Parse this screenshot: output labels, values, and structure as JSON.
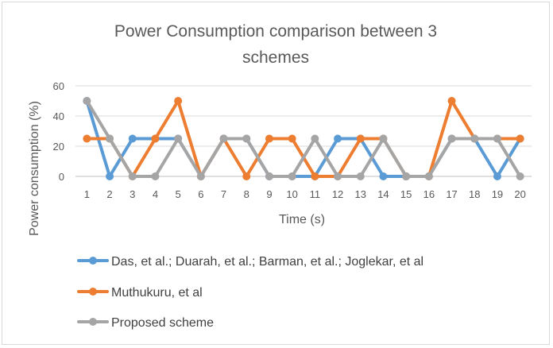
{
  "chart_data": {
    "type": "line",
    "title_line1": "Power Consumption comparison between 3",
    "title_line2": "schemes",
    "xlabel": "Time (s)",
    "ylabel": "Power consumption (%)",
    "ylim": [
      0,
      60
    ],
    "yticks": [
      0,
      20,
      40,
      60
    ],
    "grid": true,
    "legend_position": "bottom",
    "x": [
      1,
      2,
      3,
      4,
      5,
      6,
      7,
      8,
      9,
      10,
      11,
      12,
      13,
      14,
      15,
      16,
      17,
      18,
      19,
      20
    ],
    "series": [
      {
        "name": "Das, et al.; Duarah, et al.; Barman, et al.; Joglekar, et al",
        "color": "#5b9bd5",
        "values": [
          50,
          0,
          25,
          25,
          25,
          0,
          25,
          25,
          0,
          0,
          0,
          25,
          25,
          0,
          0,
          0,
          25,
          25,
          0,
          25
        ]
      },
      {
        "name": "Muthukuru, et al",
        "color": "#ed7d31",
        "values": [
          25,
          25,
          0,
          25,
          50,
          0,
          25,
          0,
          25,
          25,
          0,
          0,
          25,
          25,
          0,
          0,
          50,
          25,
          25,
          25
        ]
      },
      {
        "name": "Proposed scheme",
        "color": "#a5a5a5",
        "values": [
          50,
          25,
          0,
          0,
          25,
          0,
          25,
          25,
          0,
          0,
          25,
          0,
          0,
          25,
          0,
          0,
          25,
          25,
          25,
          0
        ]
      }
    ]
  }
}
